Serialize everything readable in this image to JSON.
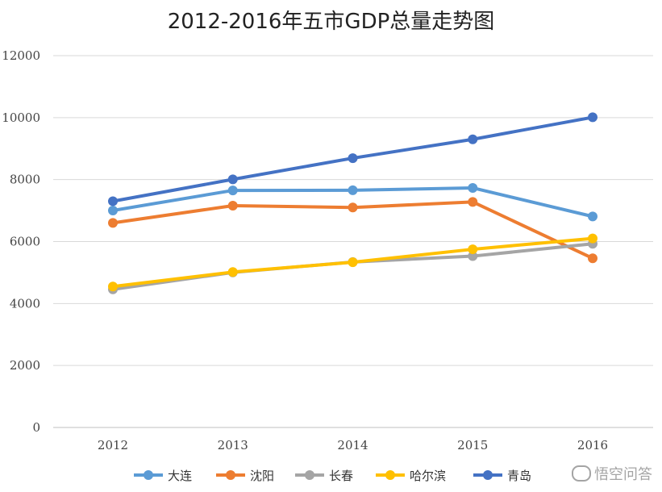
{
  "chart_data": {
    "type": "line",
    "title": "2012-2016年五市GDP总量走势图",
    "xlabel": "",
    "ylabel": "",
    "categories": [
      "2012",
      "2013",
      "2014",
      "2015",
      "2016"
    ],
    "ylim": [
      0,
      12000
    ],
    "yticks": [
      0,
      2000,
      4000,
      6000,
      8000,
      10000,
      12000
    ],
    "grid": true,
    "legend_position": "bottom",
    "series": [
      {
        "name": "大连",
        "color": "#5B9BD5",
        "values": [
          7003,
          7651,
          7656,
          7732,
          6810
        ]
      },
      {
        "name": "沈阳",
        "color": "#ED7D31",
        "values": [
          6603,
          7159,
          7099,
          7280,
          5460
        ]
      },
      {
        "name": "长春",
        "color": "#A5A5A5",
        "values": [
          4457,
          5004,
          5340,
          5530,
          5929
        ]
      },
      {
        "name": "哈尔滨",
        "color": "#FFC000",
        "values": [
          4550,
          5016,
          5333,
          5751,
          6102
        ]
      },
      {
        "name": "青岛",
        "color": "#4472C4",
        "values": [
          7302,
          8007,
          8692,
          9300,
          10011
        ]
      }
    ]
  },
  "watermark": {
    "icon": "speech-bubble-icon",
    "text": "悟空问答"
  }
}
